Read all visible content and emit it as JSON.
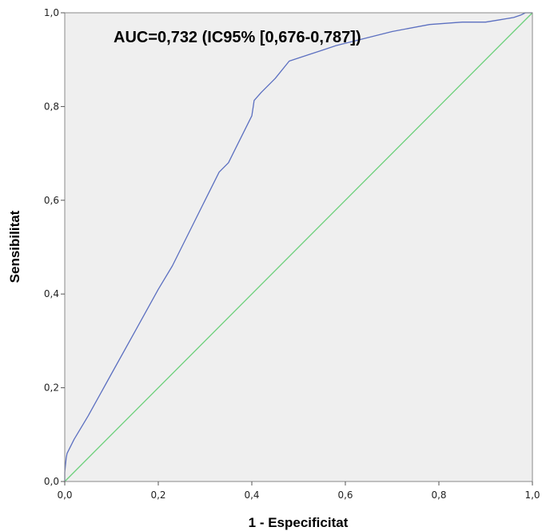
{
  "chart_data": {
    "type": "line",
    "title": "",
    "annotation": "AUC=0,732 (IC95% [0,676-0,787])",
    "xlabel": "1 - Especificitat",
    "ylabel": "Sensibilitat",
    "xlim": [
      0,
      1
    ],
    "ylim": [
      0,
      1
    ],
    "xticks": [
      "0,0",
      "0,2",
      "0,4",
      "0,6",
      "0,8",
      "1,0"
    ],
    "yticks": [
      "0,0",
      "0,2",
      "0,4",
      "0,6",
      "0,8",
      "1,0"
    ],
    "grid": false,
    "series": [
      {
        "color": "#5b6fc0",
        "x": [
          0,
          0,
          0.003,
          0.005,
          0.02,
          0.05,
          0.1,
          0.15,
          0.2,
          0.23,
          0.27,
          0.3,
          0.33,
          0.35,
          0.36,
          0.38,
          0.4,
          0.403,
          0.405,
          0.42,
          0.45,
          0.48,
          0.52,
          0.55,
          0.58,
          0.62,
          0.7,
          0.78,
          0.85,
          0.9,
          0.93,
          0.96,
          0.975,
          0.985,
          1.0
        ],
        "y": [
          0,
          0.02,
          0.05,
          0.06,
          0.09,
          0.14,
          0.23,
          0.32,
          0.41,
          0.46,
          0.54,
          0.6,
          0.66,
          0.68,
          0.7,
          0.74,
          0.78,
          0.8,
          0.813,
          0.83,
          0.86,
          0.897,
          0.91,
          0.92,
          0.93,
          0.94,
          0.96,
          0.975,
          0.98,
          0.98,
          0.985,
          0.99,
          0.995,
          1.0,
          1.0
        ]
      },
      {
        "color": "#6cd07b",
        "x": [
          0,
          1
        ],
        "y": [
          0,
          1
        ]
      }
    ],
    "colors": {
      "plot_background": "#efefef",
      "frame": "#888888",
      "roc_line": "#5b6fc0",
      "reference_line": "#6cd07b"
    }
  }
}
